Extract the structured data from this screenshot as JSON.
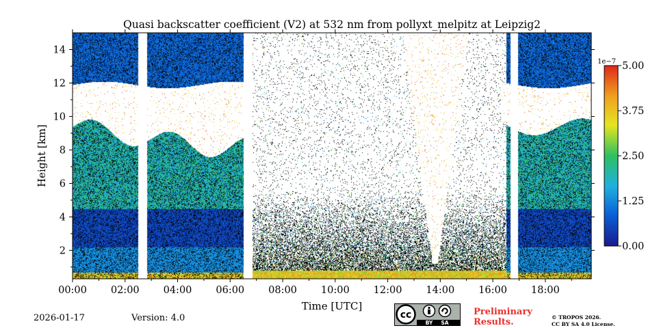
{
  "chart_data": {
    "type": "heatmap",
    "title": "Quasi backscatter coefficient (V2) at 532 nm from pollyxt_melpitz at Leipzig2",
    "xlabel": "Time [UTC]",
    "ylabel": "Height [km]",
    "xlim": [
      0,
      19.75
    ],
    "ylim": [
      0.3,
      15.0
    ],
    "x_ticks": [
      {
        "value": 0,
        "label": "00:00"
      },
      {
        "value": 2,
        "label": "02:00"
      },
      {
        "value": 4,
        "label": "04:00"
      },
      {
        "value": 6,
        "label": "06:00"
      },
      {
        "value": 8,
        "label": "08:00"
      },
      {
        "value": 10,
        "label": "10:00"
      },
      {
        "value": 12,
        "label": "12:00"
      },
      {
        "value": 14,
        "label": "14:00"
      },
      {
        "value": 16,
        "label": "16:00"
      },
      {
        "value": 18,
        "label": "18:00"
      }
    ],
    "y_ticks": [
      {
        "value": 2,
        "label": "2"
      },
      {
        "value": 4,
        "label": "4"
      },
      {
        "value": 6,
        "label": "6"
      },
      {
        "value": 8,
        "label": "8"
      },
      {
        "value": 10,
        "label": "10"
      },
      {
        "value": 12,
        "label": "12"
      },
      {
        "value": 14,
        "label": "14"
      }
    ],
    "colorbar": {
      "scale_label": "1e−7",
      "range": [
        0.0,
        5.0
      ],
      "ticks": [
        {
          "value": 0.0,
          "label": "0.00"
        },
        {
          "value": 1.25,
          "label": "1.25"
        },
        {
          "value": 2.5,
          "label": "2.50"
        },
        {
          "value": 3.75,
          "label": "3.75"
        },
        {
          "value": 5.0,
          "label": "5.00"
        }
      ],
      "colormap": [
        "#1a1a8f",
        "#0a5fd6",
        "#1fb0e0",
        "#2ec060",
        "#e5e520",
        "#f0a020",
        "#e0281a"
      ]
    },
    "data_gaps_hours": [
      [
        2.5,
        2.83
      ],
      [
        6.5,
        6.83
      ],
      [
        16.67,
        16.95
      ]
    ],
    "features": [
      {
        "name": "cirrus cloud layer",
        "time_range": [
          0,
          19.75
        ],
        "height_range_km": [
          9.0,
          12.0
        ]
      },
      {
        "name": "noisy daytime region",
        "time_range": [
          6.8,
          16.5
        ],
        "height_range_km": [
          2.0,
          15.0
        ]
      }
    ]
  },
  "footer": {
    "date": "2026-01-17",
    "version": "Version: 4.0",
    "license_badge": {
      "cc": "cc",
      "by": "BY",
      "sa": "SA"
    },
    "preliminary_line1": "Preliminary",
    "preliminary_line2": "Results.",
    "copyright_line1": "© TROPOS 2026.",
    "copyright_line2": "CC BY SA 4.0 License."
  }
}
